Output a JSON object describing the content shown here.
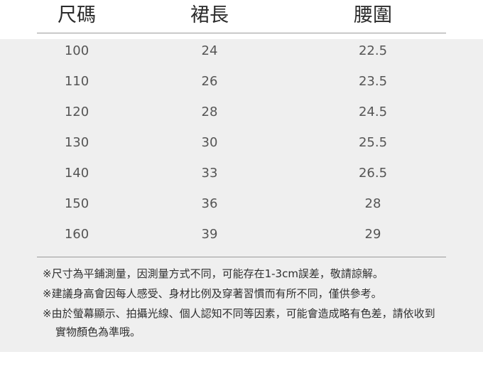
{
  "table": {
    "header": [
      "尺碼",
      "裙長",
      "腰圍"
    ],
    "rows": [
      [
        "100",
        "24",
        "22.5"
      ],
      [
        "110",
        "26",
        "23.5"
      ],
      [
        "120",
        "28",
        "24.5"
      ],
      [
        "130",
        "30",
        "25.5"
      ],
      [
        "140",
        "33",
        "26.5"
      ],
      [
        "150",
        "36",
        "28"
      ],
      [
        "160",
        "39",
        "29"
      ]
    ]
  },
  "notes": [
    "※尺寸為平鋪測量，因測量方式不同，可能存在1-3cm誤差，敬請諒解。",
    "※建議身高會因每人感受、身材比例及穿著習慣而有所不同，僅供參考。",
    "※由於螢幕顯示、拍攝光線、個人認知不同等因素，可能會造成略有色差，請依收到實物顏色為準哦。"
  ]
}
